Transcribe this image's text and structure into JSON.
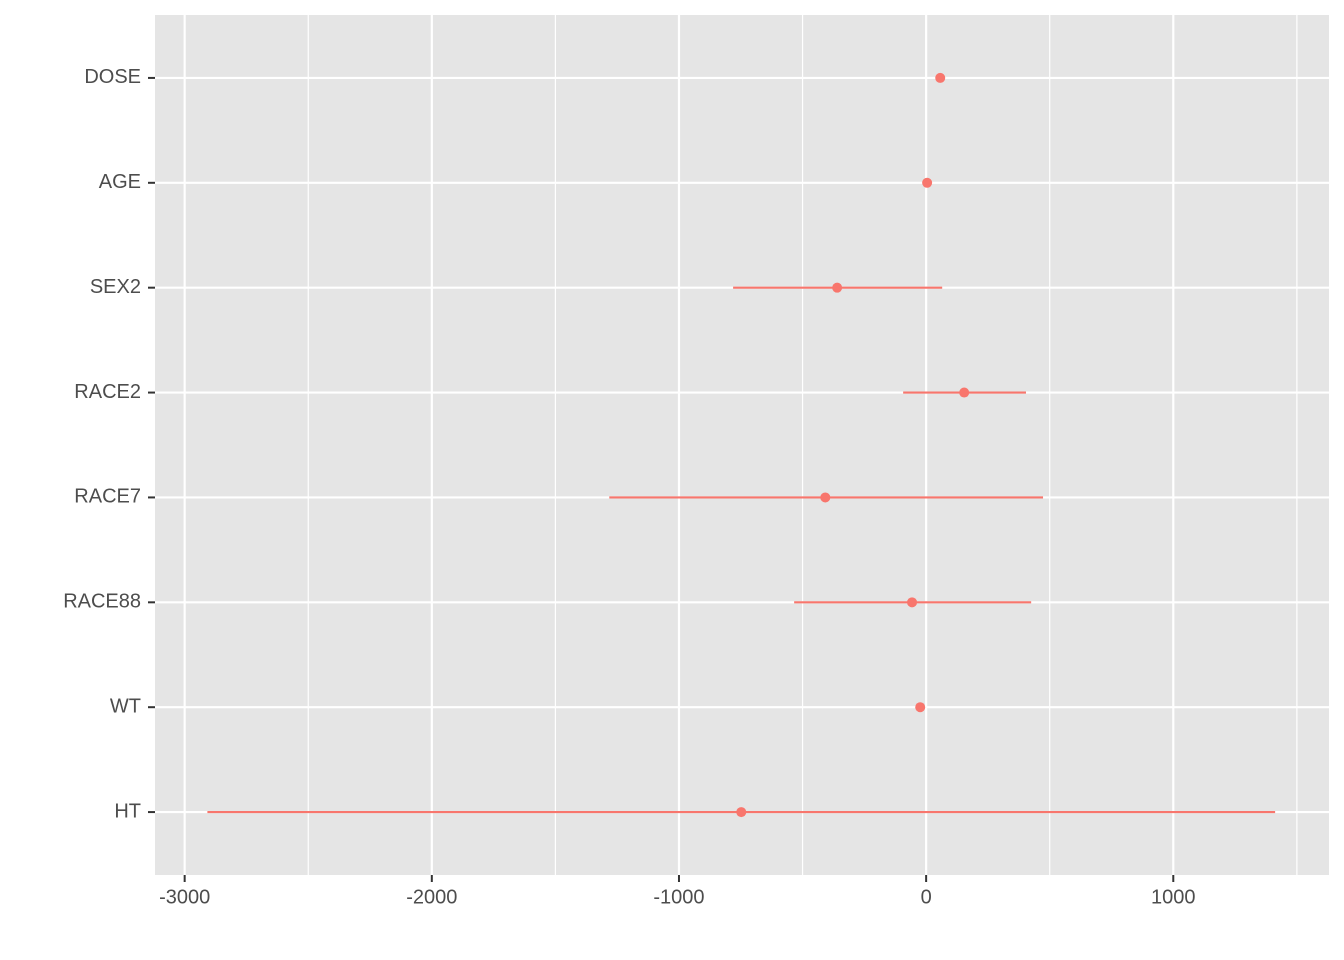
{
  "chart_data": {
    "type": "errorbar",
    "categories": [
      "DOSE",
      "AGE",
      "SEX2",
      "RACE2",
      "RACE7",
      "RACE88",
      "WT",
      "HT"
    ],
    "series": [
      {
        "color": "#f8766d",
        "values": [
          57,
          4,
          -360,
          154,
          -408,
          -57,
          -24,
          -748
        ],
        "lower": [
          null,
          null,
          -781,
          -93,
          -1282,
          -534,
          null,
          -2908
        ],
        "upper": [
          null,
          null,
          65,
          404,
          473,
          425,
          null,
          1412
        ]
      }
    ],
    "xlim": [
      -3120,
      1630
    ],
    "xticks": [
      -3000,
      -2000,
      -1000,
      0,
      1000
    ],
    "minor_xticks": [
      -2500,
      -1500,
      -500,
      500,
      1500
    ],
    "grid": true
  }
}
